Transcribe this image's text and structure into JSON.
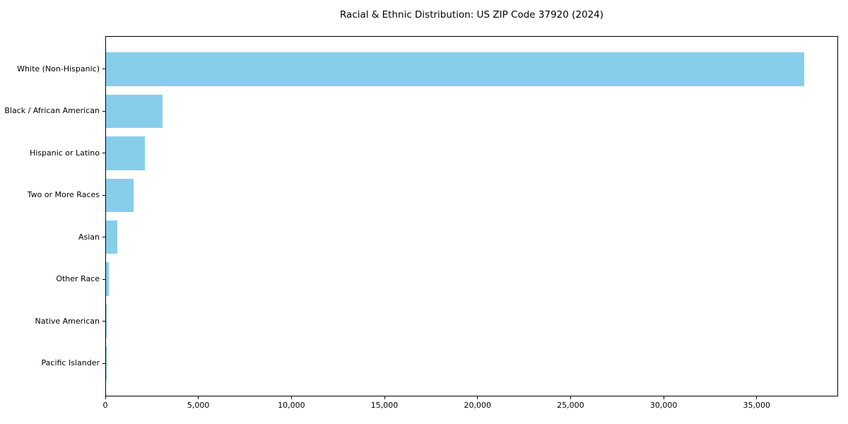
{
  "chart_data": {
    "type": "bar",
    "orientation": "horizontal",
    "title": "Racial & Ethnic Distribution: US ZIP Code 37920 (2024)",
    "categories": [
      "White (Non-Hispanic)",
      "Black / African American",
      "Hispanic or Latino",
      "Two or More Races",
      "Asian",
      "Other Race",
      "Native American",
      "Pacific Islander"
    ],
    "values": [
      37500,
      3050,
      2090,
      1480,
      600,
      140,
      40,
      10
    ],
    "xlabel": "",
    "ylabel": "",
    "xlim": [
      0,
      39375
    ],
    "xticks": [
      0,
      5000,
      10000,
      15000,
      20000,
      25000,
      30000,
      35000
    ],
    "xtick_labels": [
      "0",
      "5,000",
      "10,000",
      "15,000",
      "20,000",
      "25,000",
      "30,000",
      "35,000"
    ],
    "bar_color": "#87CEEB",
    "axis_color": "#000000",
    "background_color": "#ffffff",
    "grid": false,
    "legend": "none",
    "bar_height_fraction": 0.8,
    "highest_category": "White (Non-Hispanic)",
    "lowest_category": "Pacific Islander"
  }
}
